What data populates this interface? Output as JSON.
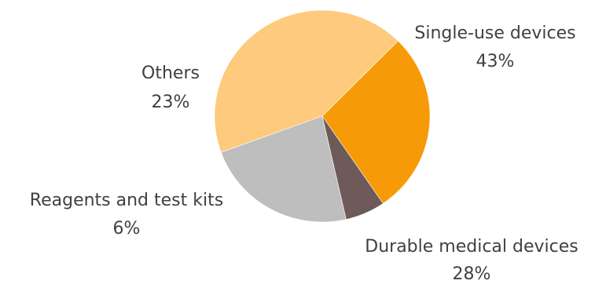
{
  "chart_data": {
    "type": "pie",
    "slices": [
      {
        "label": "Single-use devices",
        "value": 43,
        "display": "43%",
        "color": "#fdca7e"
      },
      {
        "label": "Durable medical devices",
        "value": 28,
        "display": "28%",
        "color": "#f79a07"
      },
      {
        "label": "Reagents and test kits",
        "value": 6,
        "display": "6%",
        "color": "#6d5a59"
      },
      {
        "label": "Others",
        "value": 23,
        "display": "23%",
        "color": "#bebebe"
      }
    ]
  }
}
